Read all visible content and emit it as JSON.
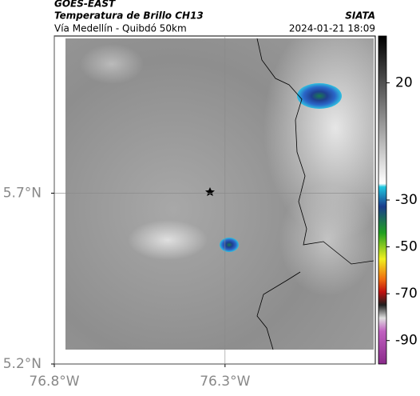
{
  "header": {
    "agency": "GOES-EAST",
    "product": "Temperatura de Brillo CH13",
    "region": "Vía Medellín - Quibdó 50km",
    "source": "SIATA",
    "datetime": "2024-01-21 18:09"
  },
  "map": {
    "lonlim": [
      -76.8,
      -75.86
    ],
    "latlim": [
      5.2,
      6.16
    ],
    "lon_ticks": [
      {
        "value": -76.8,
        "label": "76.8°W"
      },
      {
        "value": -76.3,
        "label": "76.3°W"
      }
    ],
    "lat_ticks": [
      {
        "value": 5.2,
        "label": "5.2°N"
      },
      {
        "value": 5.7,
        "label": "5.7°N"
      }
    ],
    "grid": true
  },
  "colorbar": {
    "clim": [
      40,
      -100
    ],
    "ticks": [
      20,
      -30,
      -50,
      -70,
      -90
    ]
  }
}
